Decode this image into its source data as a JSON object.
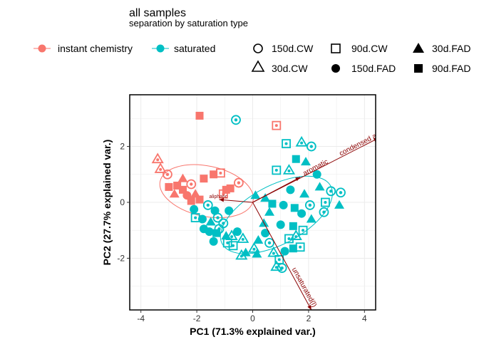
{
  "chart_data": {
    "type": "scatter",
    "title": "all samples",
    "subtitle": "separation by saturation type",
    "xlabel": "PC1 (71.3% explained var.)",
    "ylabel": "PC2 (27.7% explained var.)",
    "xlim": [
      -4.4,
      4.4
    ],
    "ylim": [
      -3.85,
      3.85
    ],
    "xticks": [
      -4,
      -2,
      0,
      2,
      4
    ],
    "yticks": [
      -2,
      0,
      2
    ],
    "grid": true,
    "legend_position": "top",
    "colors": {
      "instant chemistry": "#F8766D",
      "saturated": "#00BFC4",
      "loadings": "#8B0000"
    },
    "color_legend": [
      "instant chemistry",
      "saturated"
    ],
    "shape_legend": [
      "150d.CW",
      "90d.CW",
      "30d.FAD",
      "30d.CW",
      "150d.FAD",
      "90d.FAD"
    ],
    "loadings": [
      {
        "label": "condensed aromatic",
        "x": 4.5,
        "y": 2.3
      },
      {
        "label": "aromatic",
        "x": 1.7,
        "y": 0.9
      },
      {
        "label": "unsaturated(l)",
        "x": 2.1,
        "y": -3.85
      },
      {
        "label": "aliphatic",
        "x": -1.2,
        "y": 0.1
      }
    ],
    "ellipses": [
      {
        "group": "instant chemistry",
        "cx": -1.65,
        "cy": 0.4,
        "rx": 1.7,
        "ry": 0.9,
        "angle_deg": -12
      },
      {
        "group": "saturated",
        "cx": 0.85,
        "cy": -0.45,
        "rx": 2.2,
        "ry": 1.05,
        "angle_deg": 28
      }
    ],
    "series": [
      {
        "name": "instant chemistry",
        "points": [
          {
            "x": -1.9,
            "y": 3.1,
            "shape": "90d.FAD"
          },
          {
            "x": 0.85,
            "y": 2.75,
            "shape": "90d.CW"
          },
          {
            "x": -3.4,
            "y": 1.55,
            "shape": "30d.CW"
          },
          {
            "x": -3.3,
            "y": 1.2,
            "shape": "30d.CW"
          },
          {
            "x": -3.05,
            "y": 1.0,
            "shape": "150d.CW"
          },
          {
            "x": -3.0,
            "y": 0.55,
            "shape": "90d.FAD"
          },
          {
            "x": -2.8,
            "y": 0.3,
            "shape": "30d.FAD"
          },
          {
            "x": -2.5,
            "y": 0.45,
            "shape": "90d.FAD"
          },
          {
            "x": -2.35,
            "y": 0.25,
            "shape": "150d.FAD"
          },
          {
            "x": -2.2,
            "y": 0.05,
            "shape": "90d.FAD"
          },
          {
            "x": -2.05,
            "y": 0.3,
            "shape": "30d.FAD"
          },
          {
            "x": -1.9,
            "y": 0.1,
            "shape": "90d.FAD"
          },
          {
            "x": -1.75,
            "y": 0.85,
            "shape": "90d.FAD"
          },
          {
            "x": -1.4,
            "y": 1.0,
            "shape": "90d.FAD"
          },
          {
            "x": -1.15,
            "y": 1.05,
            "shape": "90d.CW"
          },
          {
            "x": -0.8,
            "y": 0.5,
            "shape": "90d.FAD"
          },
          {
            "x": -0.5,
            "y": 0.7,
            "shape": "150d.CW"
          },
          {
            "x": -0.95,
            "y": 0.45,
            "shape": "90d.FAD"
          },
          {
            "x": -1.05,
            "y": 0.3,
            "shape": "90d.CW"
          },
          {
            "x": -2.5,
            "y": 0.85,
            "shape": "30d.FAD"
          },
          {
            "x": -2.7,
            "y": 0.6,
            "shape": "90d.FAD"
          },
          {
            "x": -2.2,
            "y": 0.65,
            "shape": "150d.CW"
          }
        ]
      },
      {
        "name": "saturated",
        "points": [
          {
            "x": -0.6,
            "y": 2.95,
            "shape": "150d.CW"
          },
          {
            "x": 1.75,
            "y": 2.15,
            "shape": "30d.CW"
          },
          {
            "x": 2.1,
            "y": 2.0,
            "shape": "150d.CW"
          },
          {
            "x": 1.2,
            "y": 2.1,
            "shape": "90d.CW"
          },
          {
            "x": 1.55,
            "y": 1.55,
            "shape": "90d.FAD"
          },
          {
            "x": 1.9,
            "y": 1.45,
            "shape": "30d.FAD"
          },
          {
            "x": 0.85,
            "y": 1.15,
            "shape": "90d.CW"
          },
          {
            "x": 1.3,
            "y": 1.15,
            "shape": "30d.CW"
          },
          {
            "x": 2.3,
            "y": 1.0,
            "shape": "150d.FAD"
          },
          {
            "x": 2.4,
            "y": 0.55,
            "shape": "30d.FAD"
          },
          {
            "x": 2.8,
            "y": 0.4,
            "shape": "150d.CW"
          },
          {
            "x": 3.15,
            "y": 0.35,
            "shape": "150d.CW"
          },
          {
            "x": 1.35,
            "y": 0.45,
            "shape": "150d.FAD"
          },
          {
            "x": 1.85,
            "y": 0.3,
            "shape": "30d.FAD"
          },
          {
            "x": 2.05,
            "y": -0.1,
            "shape": "150d.CW"
          },
          {
            "x": 2.6,
            "y": 0.0,
            "shape": "90d.CW"
          },
          {
            "x": 3.1,
            "y": -0.1,
            "shape": "30d.FAD"
          },
          {
            "x": 2.55,
            "y": -0.35,
            "shape": "150d.CW"
          },
          {
            "x": 0.1,
            "y": 0.25,
            "shape": "30d.FAD"
          },
          {
            "x": 0.45,
            "y": 0.15,
            "shape": "30d.FAD"
          },
          {
            "x": 0.7,
            "y": -0.05,
            "shape": "90d.FAD"
          },
          {
            "x": 1.1,
            "y": -0.1,
            "shape": "150d.FAD"
          },
          {
            "x": 0.6,
            "y": -0.35,
            "shape": "30d.FAD"
          },
          {
            "x": 1.5,
            "y": -0.2,
            "shape": "90d.FAD"
          },
          {
            "x": 1.75,
            "y": -0.4,
            "shape": "150d.FAD"
          },
          {
            "x": -1.6,
            "y": -0.1,
            "shape": "150d.CW"
          },
          {
            "x": -1.35,
            "y": -0.3,
            "shape": "150d.FAD"
          },
          {
            "x": -2.1,
            "y": -0.25,
            "shape": "150d.FAD"
          },
          {
            "x": -2.05,
            "y": -0.55,
            "shape": "90d.CW"
          },
          {
            "x": -1.8,
            "y": -0.6,
            "shape": "150d.FAD"
          },
          {
            "x": -1.5,
            "y": -0.7,
            "shape": "30d.FAD"
          },
          {
            "x": -1.25,
            "y": -0.55,
            "shape": "150d.CW"
          },
          {
            "x": -1.05,
            "y": -0.75,
            "shape": "150d.CW"
          },
          {
            "x": -1.75,
            "y": -0.95,
            "shape": "150d.FAD"
          },
          {
            "x": -1.55,
            "y": -1.05,
            "shape": "150d.FAD"
          },
          {
            "x": -1.3,
            "y": -1.1,
            "shape": "90d.FAD"
          },
          {
            "x": -1.2,
            "y": -0.95,
            "shape": "150d.CW"
          },
          {
            "x": -0.95,
            "y": -1.2,
            "shape": "30d.FAD"
          },
          {
            "x": -1.4,
            "y": -1.4,
            "shape": "150d.FAD"
          },
          {
            "x": -0.9,
            "y": -1.45,
            "shape": "90d.CW"
          },
          {
            "x": -0.75,
            "y": -1.2,
            "shape": "30d.CW"
          },
          {
            "x": -0.55,
            "y": -1.05,
            "shape": "150d.FAD"
          },
          {
            "x": -0.7,
            "y": -1.55,
            "shape": "90d.CW"
          },
          {
            "x": -0.35,
            "y": -1.3,
            "shape": "30d.CW"
          },
          {
            "x": -0.25,
            "y": -1.8,
            "shape": "30d.FAD"
          },
          {
            "x": -0.4,
            "y": -1.9,
            "shape": "30d.CW"
          },
          {
            "x": 0.05,
            "y": -1.65,
            "shape": "30d.CW"
          },
          {
            "x": 0.15,
            "y": -1.85,
            "shape": "30d.FAD"
          },
          {
            "x": 0.2,
            "y": -1.35,
            "shape": "30d.FAD"
          },
          {
            "x": 0.45,
            "y": -1.1,
            "shape": "150d.FAD"
          },
          {
            "x": 0.6,
            "y": -1.45,
            "shape": "150d.CW"
          },
          {
            "x": 0.75,
            "y": -1.8,
            "shape": "30d.CW"
          },
          {
            "x": 0.95,
            "y": -2.05,
            "shape": "90d.CW"
          },
          {
            "x": 0.85,
            "y": -2.3,
            "shape": "30d.CW"
          },
          {
            "x": 1.05,
            "y": -2.35,
            "shape": "150d.CW"
          },
          {
            "x": 1.15,
            "y": -1.75,
            "shape": "150d.FAD"
          },
          {
            "x": 1.3,
            "y": -1.3,
            "shape": "90d.CW"
          },
          {
            "x": 1.55,
            "y": -1.2,
            "shape": "30d.CW"
          },
          {
            "x": 1.8,
            "y": -1.0,
            "shape": "90d.CW"
          },
          {
            "x": 1.45,
            "y": -0.85,
            "shape": "90d.FAD"
          },
          {
            "x": 1.0,
            "y": -0.8,
            "shape": "150d.FAD"
          },
          {
            "x": 0.4,
            "y": -0.75,
            "shape": "30d.FAD"
          },
          {
            "x": 1.7,
            "y": -1.6,
            "shape": "90d.CW"
          },
          {
            "x": 1.45,
            "y": -1.65,
            "shape": "90d.FAD"
          },
          {
            "x": 2.1,
            "y": -0.6,
            "shape": "30d.FAD"
          },
          {
            "x": -0.85,
            "y": -0.3,
            "shape": "150d.FAD"
          }
        ]
      }
    ]
  }
}
